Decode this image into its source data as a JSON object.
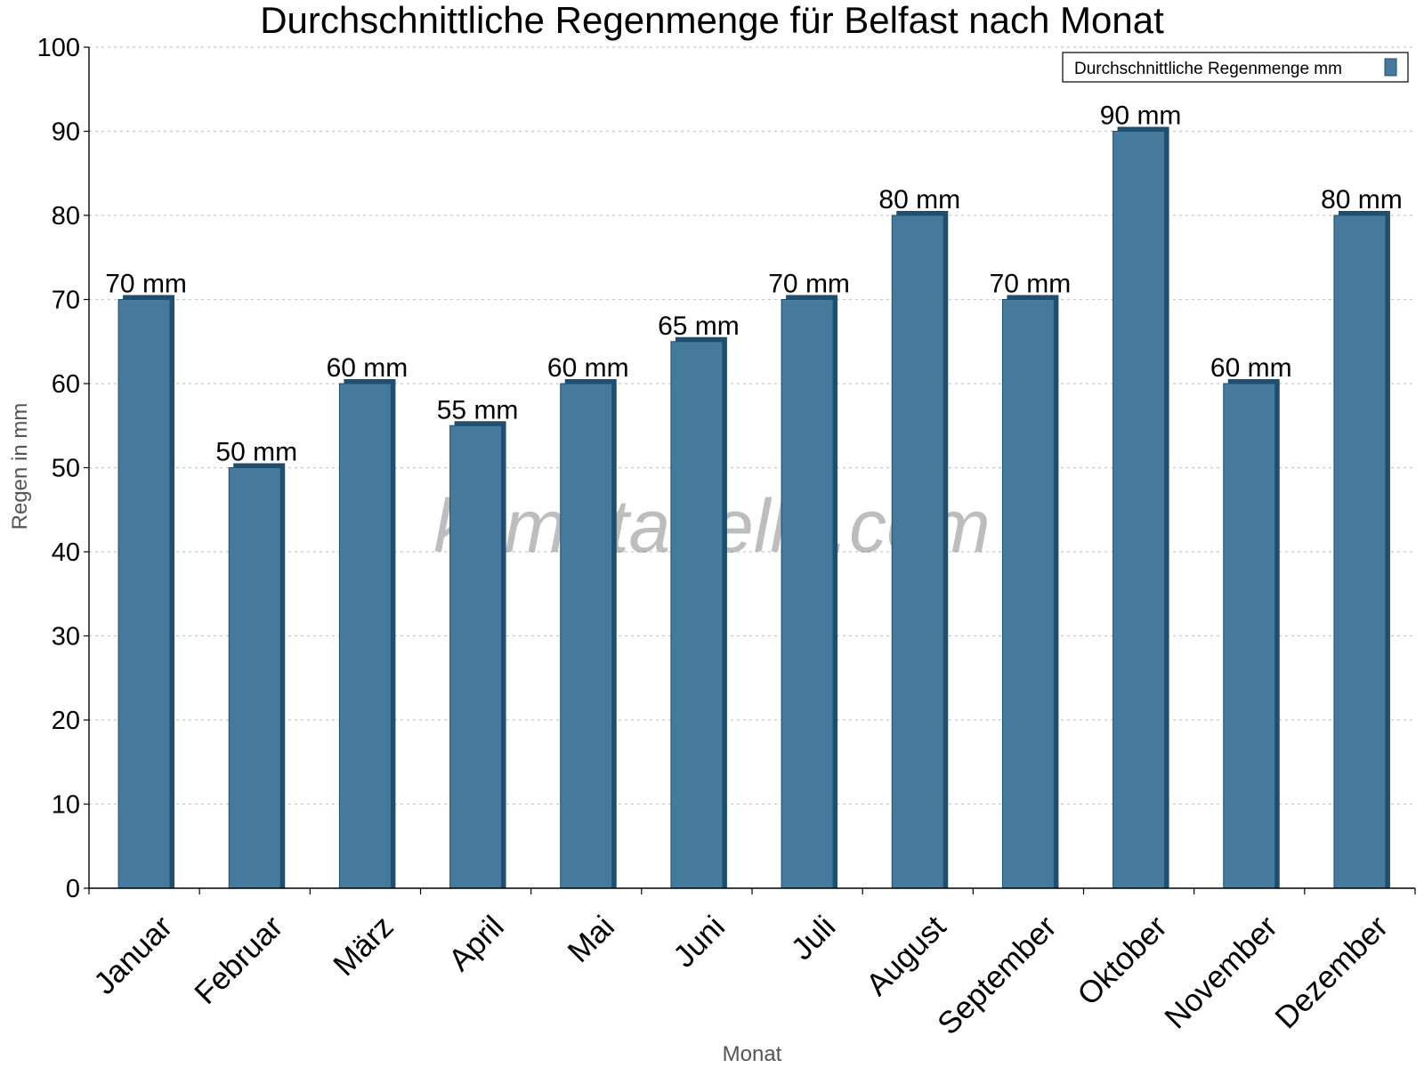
{
  "chart_data": {
    "type": "bar",
    "title": "Durchschnittliche Regenmenge für Belfast nach Monat",
    "xlabel": "Monat",
    "ylabel": "Regen in mm",
    "categories": [
      "Januar",
      "Februar",
      "März",
      "April",
      "Mai",
      "Juni",
      "Juli",
      "August",
      "September",
      "Oktober",
      "November",
      "Dezember"
    ],
    "series": [
      {
        "name": "Durchschnittliche Regenmenge mm",
        "values": [
          70,
          50,
          60,
          55,
          60,
          65,
          70,
          80,
          70,
          90,
          60,
          80
        ],
        "value_labels": [
          "70 mm",
          "50 mm",
          "60 mm",
          "55 mm",
          "60 mm",
          "65 mm",
          "70 mm",
          "80 mm",
          "70 mm",
          "90 mm",
          "60 mm",
          "80 mm"
        ],
        "color": "#457a9d",
        "edge_color": "#1f4e6e"
      }
    ],
    "ylim": [
      0,
      100
    ],
    "yticks": [
      0,
      10,
      20,
      30,
      40,
      50,
      60,
      70,
      80,
      90,
      100
    ],
    "grid": true,
    "legend": "top-right"
  },
  "watermark": "klimatabelle.com"
}
